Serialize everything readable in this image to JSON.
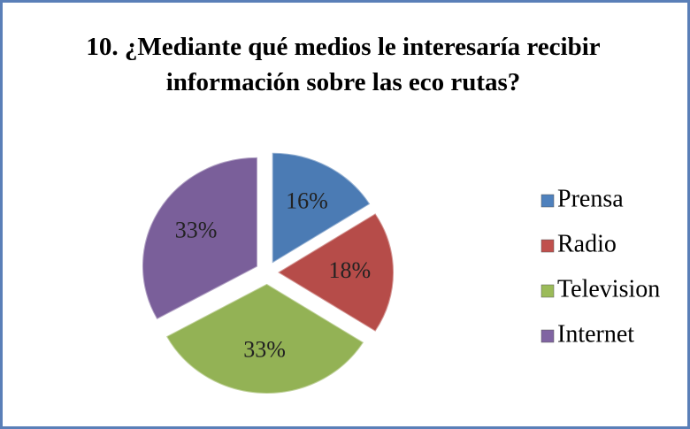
{
  "chart_data": {
    "type": "pie",
    "title": "10.  ¿Mediante qué medios le interesaría recibir información sobre las eco rutas?",
    "categories": [
      "Prensa",
      "Radio",
      "Television",
      "Internet"
    ],
    "values": [
      16,
      18,
      33,
      33
    ],
    "value_labels": [
      "16%",
      "18%",
      "33%",
      "33%"
    ],
    "colors": [
      "#4f81bd",
      "#c0504d",
      "#9bbb59",
      "#8064a2"
    ],
    "legend": "right"
  }
}
